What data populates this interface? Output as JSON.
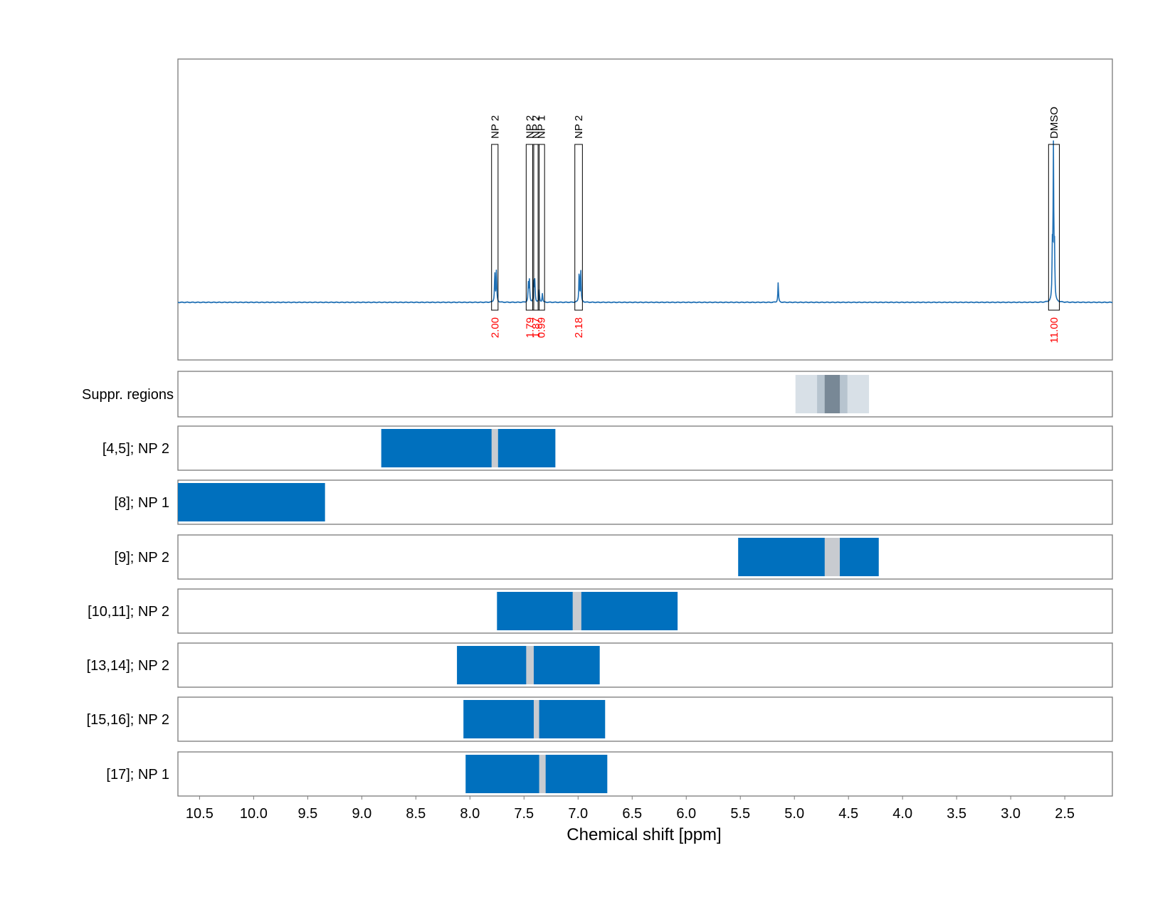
{
  "chart_data": {
    "type": "line",
    "xlabel": "Chemical shift [ppm]",
    "xlim": [
      10.7,
      2.06
    ],
    "x_ticks": [
      "10.5",
      "10.0",
      "9.5",
      "9.0",
      "8.5",
      "8.0",
      "7.5",
      "7.0",
      "6.5",
      "6.0",
      "5.5",
      "5.0",
      "4.5",
      "4.0",
      "3.5",
      "3.0",
      "2.5"
    ],
    "grid": true,
    "colors": {
      "spectrum": "#1f6fb4",
      "bar": "#0070be",
      "gap": "#c8cbd0",
      "integral": "#ff0000",
      "suppr_light": "#d8e0e7",
      "suppr_mid": "#b7c4cf",
      "suppr_dark": "#788896"
    },
    "spectrum": {
      "peaks": [
        {
          "ppm": 7.77,
          "height": 0.2
        },
        {
          "ppm": 7.755,
          "height": 0.21
        },
        {
          "ppm": 7.46,
          "height": 0.12
        },
        {
          "ppm": 7.45,
          "height": 0.14
        },
        {
          "ppm": 7.41,
          "height": 0.13
        },
        {
          "ppm": 7.4,
          "height": 0.14
        },
        {
          "ppm": 7.36,
          "height": 0.08
        },
        {
          "ppm": 7.33,
          "height": 0.06
        },
        {
          "ppm": 6.99,
          "height": 0.21
        },
        {
          "ppm": 6.975,
          "height": 0.2
        },
        {
          "ppm": 5.15,
          "height": 0.13
        },
        {
          "ppm": 2.615,
          "height": 0.33
        },
        {
          "ppm": 2.605,
          "height": 1.0
        },
        {
          "ppm": 2.595,
          "height": 0.32
        }
      ],
      "annotations": [
        {
          "label": "NP 2",
          "integral": "2.00",
          "left": 7.8,
          "right": 7.74
        },
        {
          "label": "NP 2",
          "integral": "1.79",
          "left": 7.48,
          "right": 7.41
        },
        {
          "label": "NP 2",
          "integral": "1.87",
          "left": 7.42,
          "right": 7.36
        },
        {
          "label": "NP 1",
          "integral": "0.99",
          "left": 7.37,
          "right": 7.31
        },
        {
          "label": "NP 2",
          "integral": "2.18",
          "left": 7.03,
          "right": 6.96
        },
        {
          "label": "DMSO",
          "integral": "11.00",
          "left": 2.65,
          "right": 2.55
        }
      ]
    },
    "suppressed_regions": {
      "label": "Suppr. regions",
      "bands": [
        {
          "from": 4.99,
          "to": 4.31,
          "level": "light"
        },
        {
          "from": 4.79,
          "to": 4.51,
          "level": "mid"
        },
        {
          "from": 4.72,
          "to": 4.58,
          "level": "dark"
        }
      ]
    },
    "rows": [
      {
        "label": "[4,5]; NP 2",
        "from": 8.82,
        "to": 7.21,
        "gap_from": 7.8,
        "gap_to": 7.74
      },
      {
        "label": "[8]; NP 1",
        "from": 10.7,
        "to": 9.34,
        "gap_from": null,
        "gap_to": null
      },
      {
        "label": "[9]; NP 2",
        "from": 5.52,
        "to": 4.22,
        "gap_from": 4.72,
        "gap_to": 4.58
      },
      {
        "label": "[10,11]; NP 2",
        "from": 7.75,
        "to": 6.08,
        "gap_from": 7.05,
        "gap_to": 6.97
      },
      {
        "label": "[13,14]; NP 2",
        "from": 8.12,
        "to": 6.8,
        "gap_from": 7.48,
        "gap_to": 7.41
      },
      {
        "label": "[15,16]; NP 2",
        "from": 8.06,
        "to": 6.75,
        "gap_from": 7.41,
        "gap_to": 7.36
      },
      {
        "label": "[17]; NP 1",
        "from": 8.04,
        "to": 6.73,
        "gap_from": 7.36,
        "gap_to": 7.3
      }
    ]
  }
}
